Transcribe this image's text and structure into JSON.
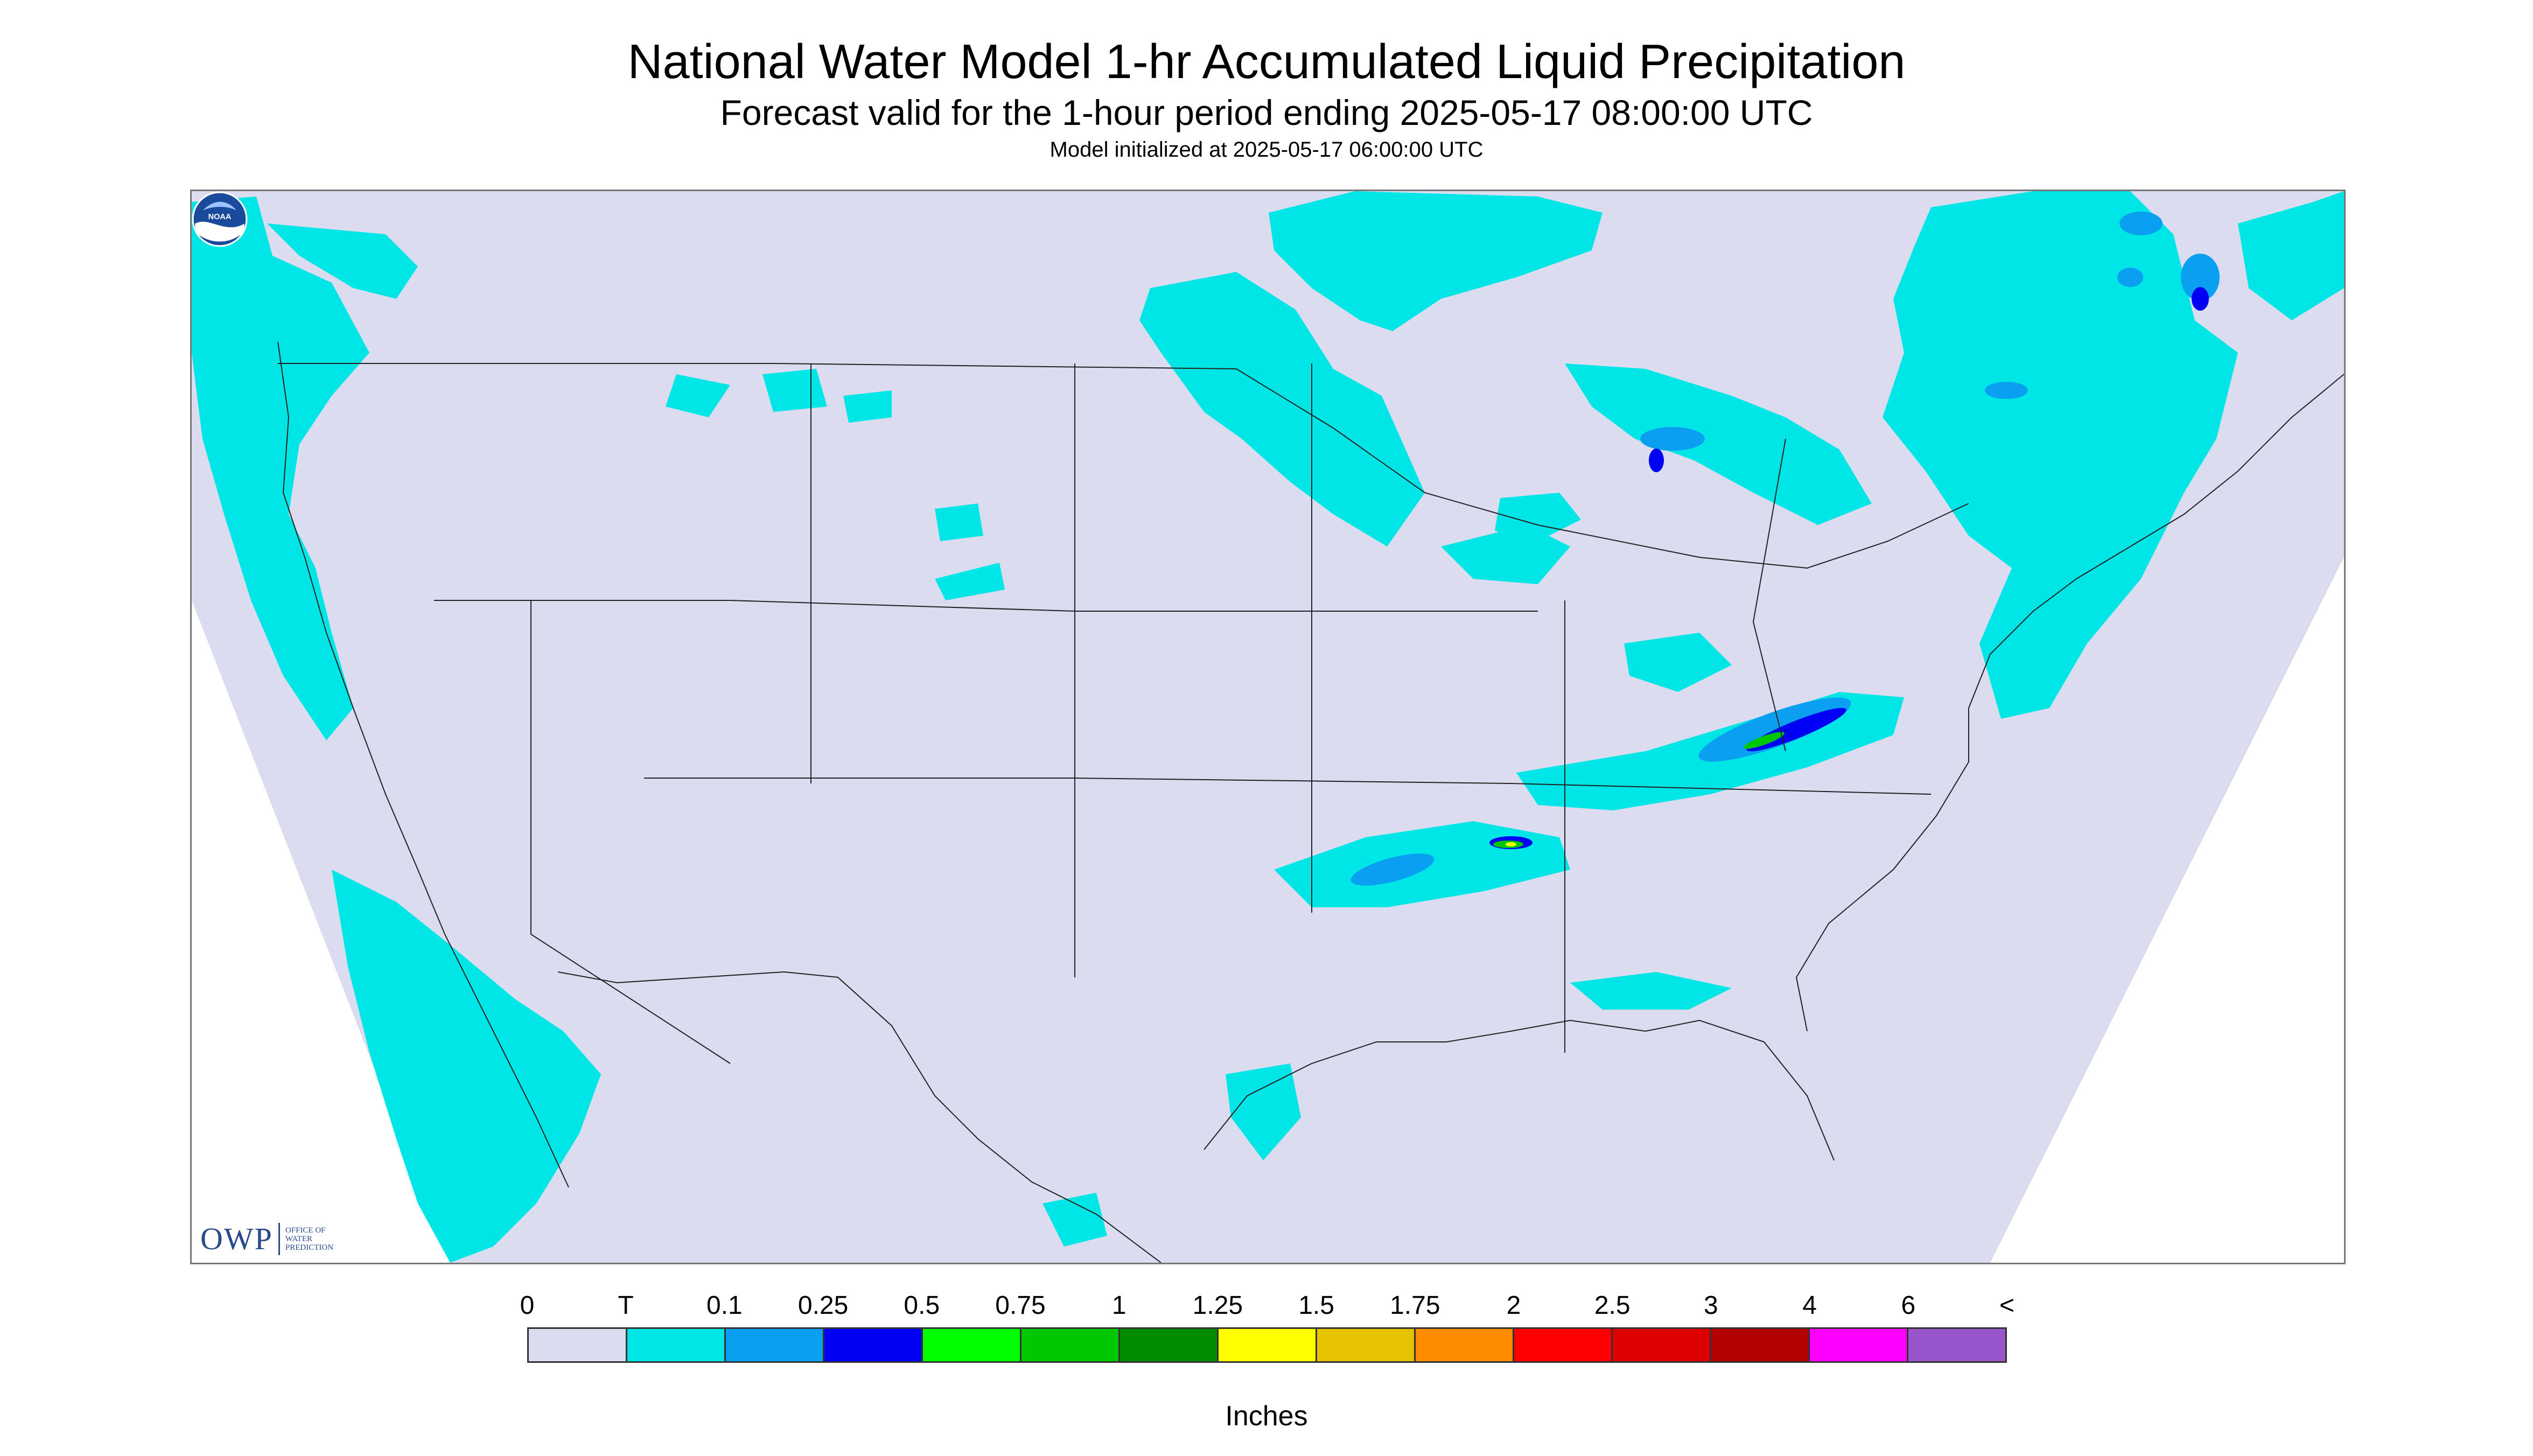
{
  "header": {
    "title": "National Water Model 1-hr Accumulated Liquid Precipitation",
    "subtitle": "Forecast valid for the 1-hour period ending 2025-05-17 08:00:00 UTC",
    "init": "Model initialized at 2025-05-17 06:00:00 UTC"
  },
  "logos": {
    "owp_mark": "OWP",
    "owp_lines": [
      "OFFICE OF",
      "WATER",
      "PREDICTION"
    ],
    "noaa": "NOAA"
  },
  "legend": {
    "ticks": [
      "0",
      "T",
      "0.1",
      "0.25",
      "0.5",
      "0.75",
      "1",
      "1.25",
      "1.5",
      "1.75",
      "2",
      "2.5",
      "3",
      "4",
      "6",
      "<"
    ],
    "colors": [
      "#dcdcf0",
      "#00e6e6",
      "#0a9ff0",
      "#0000f5",
      "#00ff00",
      "#00c800",
      "#008c00",
      "#ffff00",
      "#e6c300",
      "#ff8c00",
      "#ff0000",
      "#dc0000",
      "#b40000",
      "#ff00ff",
      "#9955cc"
    ],
    "units_label": "Inches"
  },
  "map_colors": {
    "background": "#dcdcf0",
    "outside_domain": "#ffffff",
    "trace": "#00e6e6",
    "light": "#0a9ff0",
    "moderate": "#0000f5",
    "heavy": "#00c800",
    "peak": "#ffff00",
    "borders": "#222222"
  }
}
